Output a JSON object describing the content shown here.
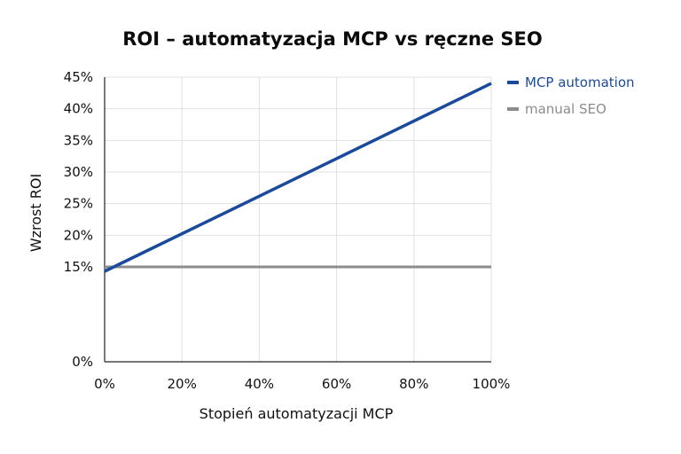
{
  "chart_data": {
    "type": "line",
    "title": "ROI – automatyzacja MCP vs ręczne SEO",
    "xlabel": "Stopień automatyzacji MCP",
    "ylabel": "Wzrost ROI",
    "x_tick_labels": [
      "0%",
      "20%",
      "40%",
      "60%",
      "80%",
      "100%"
    ],
    "y_tick_labels": [
      "0%",
      "15%",
      "20%",
      "25%",
      "30%",
      "35%",
      "40%",
      "45%"
    ],
    "xlim": [
      0,
      100
    ],
    "ylim": [
      0,
      45
    ],
    "grid": true,
    "legend_position": "right",
    "series": [
      {
        "name": "MCP automation",
        "color": "#1a4a9c",
        "x": [
          0,
          100
        ],
        "y": [
          14.3,
          44
        ]
      },
      {
        "name": "manual SEO",
        "color": "#8c8c8c",
        "x": [
          0,
          100
        ],
        "y": [
          15,
          15
        ]
      }
    ]
  }
}
